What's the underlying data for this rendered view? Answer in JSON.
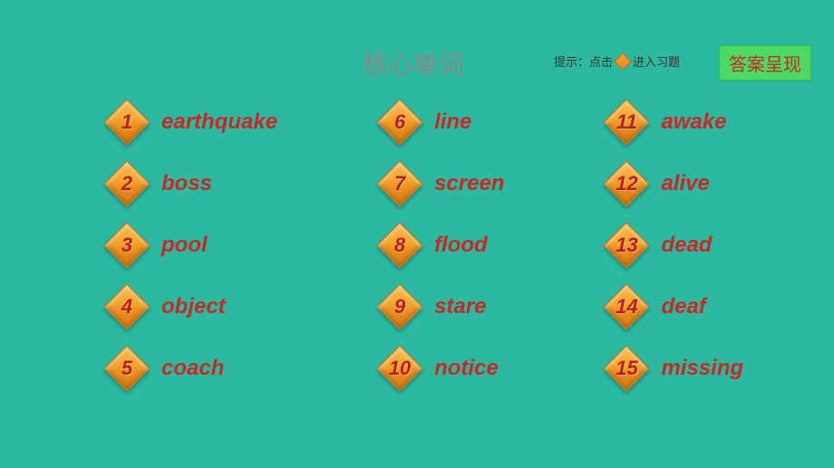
{
  "title": "核心单词",
  "hint_prefix": "提示：点击",
  "hint_suffix": "进入习题",
  "answer_button": "答案呈现",
  "colors": {
    "background": "#2db9a0",
    "word_text": "#c72828",
    "title_text": "#888888",
    "diamond_fill": "#e89020",
    "answer_btn_bg": "#4cd964"
  },
  "columns": [
    {
      "items": [
        {
          "num": "1",
          "word": "earthquake"
        },
        {
          "num": "2",
          "word": "boss"
        },
        {
          "num": "3",
          "word": "pool"
        },
        {
          "num": "4",
          "word": "object"
        },
        {
          "num": "5",
          "word": "coach"
        }
      ]
    },
    {
      "items": [
        {
          "num": "6",
          "word": "line"
        },
        {
          "num": "7",
          "word": "screen"
        },
        {
          "num": "8",
          "word": "flood"
        },
        {
          "num": "9",
          "word": "stare"
        },
        {
          "num": "10",
          "word": "notice"
        }
      ]
    },
    {
      "items": [
        {
          "num": "11",
          "word": "awake"
        },
        {
          "num": "12",
          "word": "alive"
        },
        {
          "num": "13",
          "word": "dead"
        },
        {
          "num": "14",
          "word": "deaf"
        },
        {
          "num": "15",
          "word": "missing"
        }
      ]
    }
  ]
}
